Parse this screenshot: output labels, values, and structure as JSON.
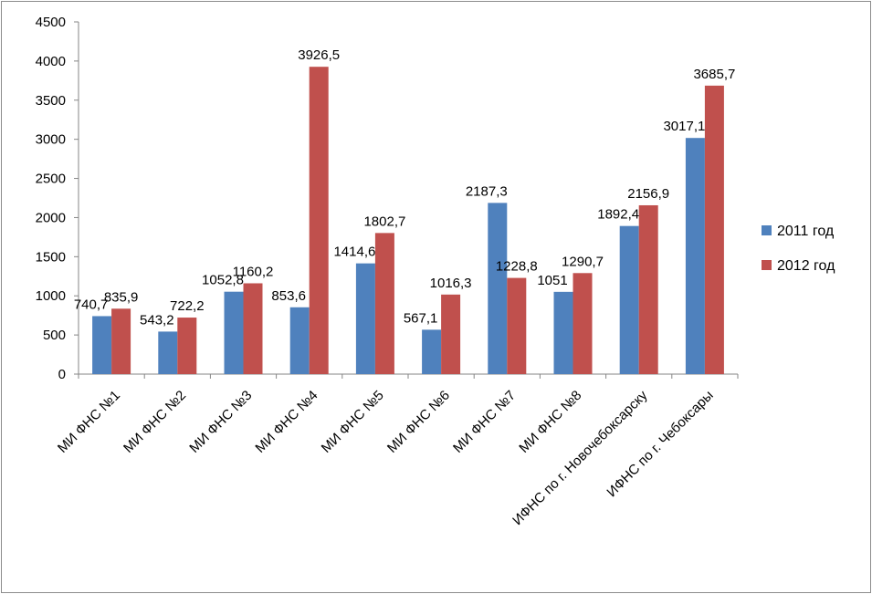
{
  "chart_data": {
    "type": "bar",
    "title": "",
    "xlabel": "",
    "ylabel": "",
    "ylim": [
      0,
      4500
    ],
    "yticks": [
      0,
      500,
      1000,
      1500,
      2000,
      2500,
      3000,
      3500,
      4000,
      4500
    ],
    "categories": [
      "МИ ФНС №1",
      "МИ ФНС №2",
      "МИ ФНС №3",
      "МИ ФНС №4",
      "МИ ФНС №5",
      "МИ ФНС №6",
      "МИ ФНС №7",
      "МИ ФНС №8",
      "ИФНС по г. Новочебоксарску",
      "ИФНС по г. Чебоксары"
    ],
    "series": [
      {
        "name": "2011 год",
        "color": "#4f81bd",
        "values": [
          740.7,
          543.2,
          1052.8,
          853.6,
          1414.6,
          567.1,
          2187.3,
          1051,
          1892.4,
          3017.1
        ],
        "labels": [
          "740,7",
          "543,2",
          "1052,8",
          "853,6",
          "1414,6",
          "567,1",
          "2187,3",
          "1051",
          "1892,4",
          "3017,1"
        ]
      },
      {
        "name": "2012 год",
        "color": "#c0504d",
        "values": [
          835.9,
          722.2,
          1160.2,
          3926.5,
          1802.7,
          1016.3,
          1228.8,
          1290.7,
          2156.9,
          3685.7
        ],
        "labels": [
          "835,9",
          "722,2",
          "1160,2",
          "3926,5",
          "1802,7",
          "1016,3",
          "1228,8",
          "1290,7",
          "2156,9",
          "3685,7"
        ]
      }
    ],
    "grid": false,
    "legend_position": "right"
  }
}
